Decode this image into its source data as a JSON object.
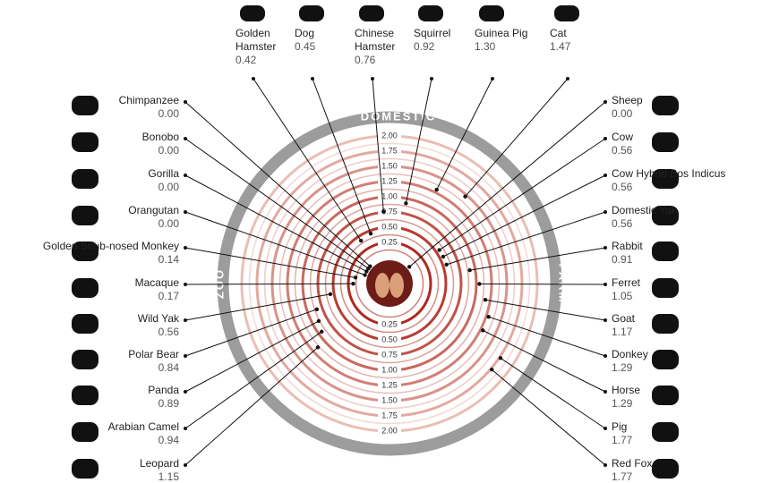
{
  "chart_data": {
    "type": "radial",
    "ylim": [
      0,
      2
    ],
    "yticks": [
      0.25,
      {
        "value": 0.5,
        "label": "0.50"
      },
      0.75,
      {
        "value": 1,
        "label": "1.00"
      },
      1.25,
      {
        "value": 1.5,
        "label": "1.50"
      },
      1.75,
      {
        "value": 2,
        "label": "2.00"
      }
    ],
    "groups": [
      {
        "name": "DOMESTIC",
        "side": "top",
        "categories": [
          "Golden Hamster",
          "Dog",
          "Chinese Hamster",
          "Squirrel",
          "Guinea Pig",
          "Cat"
        ],
        "values": [
          0.42,
          0.45,
          0.76,
          0.92,
          1.3,
          1.47
        ],
        "value_labels": [
          "0.42",
          "0.45",
          "0.76",
          "0.92",
          "1.30",
          "1.47"
        ]
      },
      {
        "name": "FARM",
        "side": "right",
        "categories": [
          "Sheep",
          "Cow",
          "Cow Hybrid Bos Indicus",
          "Domestic Yak",
          "Rabbit",
          "Ferret",
          "Goat",
          "Donkey",
          "Horse",
          "Pig",
          "Red Fox"
        ],
        "values": [
          0,
          0.56,
          0.56,
          0.56,
          0.91,
          1.05,
          1.17,
          1.29,
          1.29,
          1.77,
          1.77
        ],
        "value_labels": [
          "0.00",
          "0.56",
          "0.56",
          "0.56",
          "0.91",
          "1.05",
          "1.17",
          "1.29",
          "1.29",
          "1.77",
          "1.77"
        ]
      },
      {
        "name": "ZOO",
        "side": "left",
        "categories": [
          "Chimpanzee",
          "Bonobo",
          "Gorilla",
          "Orangutan",
          "Golden Snub-nosed Monkey",
          "Macaque",
          "Wild Yak",
          "Polar Bear",
          "Panda",
          "Arabian Camel",
          "Leopard"
        ],
        "values": [
          0,
          0,
          0,
          0,
          0.14,
          0.17,
          0.56,
          0.84,
          0.89,
          0.94,
          1.15
        ],
        "value_labels": [
          "0.00",
          "0.00",
          "0.00",
          "0.00",
          "0.14",
          "0.17",
          "0.56",
          "0.84",
          "0.89",
          "0.94",
          "1.15"
        ]
      }
    ]
  }
}
